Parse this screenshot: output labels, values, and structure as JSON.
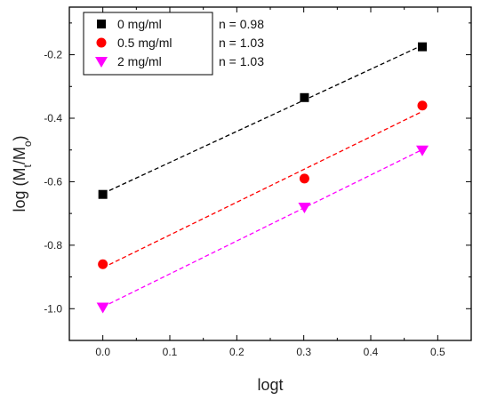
{
  "chart_data": {
    "type": "scatter",
    "xlabel": "logt",
    "ylabel": {
      "prefix": "log (M",
      "sub1": "t",
      "mid": "/M",
      "sub2": "o",
      "suffix": ")"
    },
    "xlim": [
      -0.05,
      0.55
    ],
    "ylim": [
      -1.1,
      -0.05
    ],
    "xticks": [
      0.0,
      0.1,
      0.2,
      0.3,
      0.4,
      0.5
    ],
    "xtick_labels": [
      "0.0",
      "0.1",
      "0.2",
      "0.3",
      "0.4",
      "0.5"
    ],
    "yticks": [
      -1.0,
      -0.8,
      -0.6,
      -0.4,
      -0.2
    ],
    "ytick_labels": [
      "-1.0",
      "-0.8",
      "-0.6",
      "-0.4",
      "-0.2"
    ],
    "grid": false,
    "legend_position": "top-left",
    "series": [
      {
        "name": "0 mg/ml",
        "fit_label": "n = 0.98",
        "color": "#000000",
        "marker": "square",
        "x": [
          0.0,
          0.301,
          0.477
        ],
        "y": [
          -0.64,
          -0.335,
          -0.175
        ]
      },
      {
        "name": "0.5 mg/ml",
        "fit_label": "n = 1.03",
        "color": "#ff0000",
        "marker": "circle",
        "x": [
          0.0,
          0.301,
          0.477
        ],
        "y": [
          -0.86,
          -0.59,
          -0.36
        ]
      },
      {
        "name": "2 mg/ml",
        "fit_label": "n = 1.03",
        "color": "#ff00ff",
        "marker": "triangle-down",
        "x": [
          0.0,
          0.301,
          0.477
        ],
        "y": [
          -0.995,
          -0.68,
          -0.5
        ]
      }
    ]
  }
}
